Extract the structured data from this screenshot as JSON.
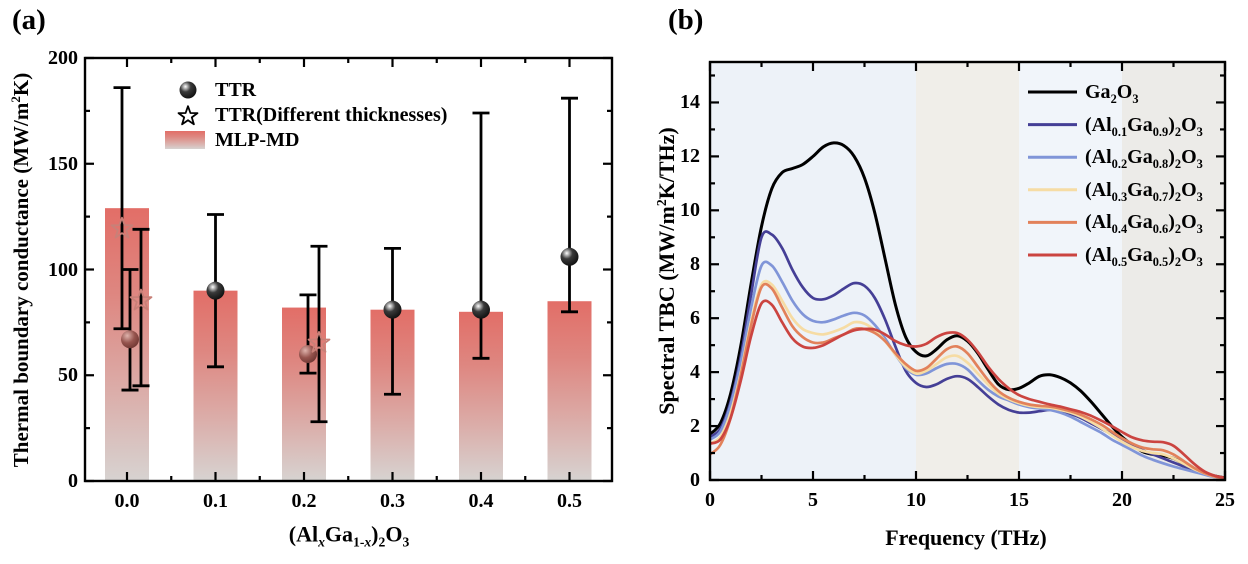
{
  "chart_data": [
    {
      "panel_label": "(a)",
      "type": "bar",
      "xlabel": "(Al_{x}Ga_{1-x})_{2}O_{3}",
      "ylabel": "Thermal boundary conductance (MW/m^{2}K)",
      "ylim": [
        0,
        200
      ],
      "yticks": [
        0,
        50,
        100,
        150,
        200
      ],
      "y_minor_step": 25,
      "categories": [
        "0.0",
        "0.1",
        "0.2",
        "0.3",
        "0.4",
        "0.5"
      ],
      "bar_series": {
        "name": "MLP-MD",
        "values": [
          129,
          90,
          82,
          81,
          80,
          85
        ],
        "color_top": "#e26e67",
        "color_mid1": "#de8781",
        "color_mid2": "#dbaeaa",
        "color_bottom": "#d7d3d1"
      },
      "scatter_series": [
        {
          "name": "TTR",
          "marker": "sphere",
          "points": [
            {
              "category": "0.0",
              "offset": 3,
              "value": 67,
              "err_low": 43,
              "err_high": 100,
              "variant": "maroon"
            },
            {
              "category": "0.1",
              "offset": 0,
              "value": 90,
              "err_low": 54,
              "err_high": 126,
              "variant": "black"
            },
            {
              "category": "0.2",
              "offset": 4,
              "value": 60,
              "err_low": 51,
              "err_high": 88,
              "variant": "maroon"
            },
            {
              "category": "0.3",
              "offset": 0,
              "value": 81,
              "err_low": 41,
              "err_high": 110,
              "variant": "black"
            },
            {
              "category": "0.4",
              "offset": 0,
              "value": 81,
              "err_low": 58,
              "err_high": 174,
              "variant": "black"
            },
            {
              "category": "0.5",
              "offset": 0,
              "value": 106,
              "err_low": 80,
              "err_high": 181,
              "variant": "black"
            }
          ]
        },
        {
          "name": "TTR(Different thicknesses)",
          "marker": "star",
          "points": [
            {
              "category": "0.0",
              "offset": -5,
              "value": 120,
              "err_low": 72,
              "err_high": 186
            },
            {
              "category": "0.0",
              "offset": 14,
              "value": 86,
              "err_low": 45,
              "err_high": 119
            },
            {
              "category": "0.2",
              "offset": 15,
              "value": 66,
              "err_low": 28,
              "err_high": 111
            }
          ]
        }
      ],
      "legend": [
        {
          "marker": "sphere",
          "label": "TTR"
        },
        {
          "marker": "star",
          "label": "TTR(Different thicknesses)"
        },
        {
          "marker": "bar",
          "label": "MLP-MD"
        }
      ],
      "colors": {
        "error_bar": "#000000",
        "sphere_black": [
          "#ffffff",
          "#3a3a3a",
          "#000000"
        ],
        "sphere_maroon": [
          "#dfb3ac",
          "#96544e",
          "#5e2a27"
        ],
        "star_outline": "#c88078",
        "legend_star_outline": "#000000"
      }
    },
    {
      "panel_label": "(b)",
      "type": "line",
      "xlabel": "Frequency (THz)",
      "ylabel": "Spectral TBC (MW/m^{2}K/THz)",
      "xlim": [
        0,
        25
      ],
      "ylim": [
        0,
        15.5
      ],
      "xticks": [
        0,
        5,
        10,
        15,
        20,
        25
      ],
      "x_minor_step": 2.5,
      "yticks": [
        0,
        2,
        4,
        6,
        8,
        10,
        12,
        14
      ],
      "y_minor_step": 1,
      "bands": [
        {
          "x_start": 0,
          "x_end": 10,
          "color": "#edf2f8"
        },
        {
          "x_start": 10,
          "x_end": 15,
          "color": "#f0eee9"
        },
        {
          "x_start": 15,
          "x_end": 20,
          "color": "#f1f5fa"
        },
        {
          "x_start": 20,
          "x_end": 25,
          "color": "#ecebe8"
        }
      ],
      "x_start": 0,
      "x_step": 0.5,
      "series": [
        {
          "name": "Ga_{2}O_{3}",
          "color": "#000000",
          "width": 3,
          "y": [
            1.7,
            2.1,
            3.2,
            5.0,
            7.3,
            9.4,
            10.8,
            11.4,
            11.55,
            11.7,
            12.0,
            12.35,
            12.5,
            12.4,
            12.0,
            11.2,
            9.9,
            8.2,
            6.5,
            5.3,
            4.75,
            4.6,
            4.85,
            5.2,
            5.35,
            5.15,
            4.7,
            4.1,
            3.55,
            3.35,
            3.4,
            3.6,
            3.85,
            3.9,
            3.8,
            3.6,
            3.3,
            2.9,
            2.45,
            2.0,
            1.6,
            1.3,
            1.05,
            0.95,
            0.9,
            0.8,
            0.6,
            0.4,
            0.25,
            0.15,
            0.08
          ]
        },
        {
          "name": "(Al_{0.1}Ga_{0.9})_{2}O_{3}",
          "color": "#453f96",
          "width": 2.7,
          "y": [
            1.6,
            1.9,
            2.9,
            4.6,
            6.9,
            9.0,
            9.1,
            8.6,
            7.8,
            7.15,
            6.75,
            6.7,
            6.85,
            7.1,
            7.3,
            7.2,
            6.75,
            5.95,
            4.95,
            4.05,
            3.6,
            3.45,
            3.55,
            3.75,
            3.85,
            3.75,
            3.45,
            3.1,
            2.8,
            2.6,
            2.5,
            2.5,
            2.55,
            2.6,
            2.55,
            2.45,
            2.3,
            2.1,
            1.9,
            1.7,
            1.5,
            1.3,
            1.1,
            0.95,
            0.8,
            0.65,
            0.5,
            0.35,
            0.22,
            0.12,
            0.06
          ]
        },
        {
          "name": "(Al_{0.2}Ga_{0.8})_{2}O_{3}",
          "color": "#8095d8",
          "width": 2.7,
          "y": [
            1.5,
            1.8,
            2.8,
            4.4,
            6.4,
            7.95,
            7.95,
            7.35,
            6.65,
            6.15,
            5.9,
            5.85,
            5.95,
            6.1,
            6.2,
            6.1,
            5.75,
            5.25,
            4.65,
            4.15,
            3.9,
            3.95,
            4.15,
            4.3,
            4.3,
            4.1,
            3.7,
            3.35,
            3.1,
            2.95,
            2.8,
            2.7,
            2.65,
            2.6,
            2.5,
            2.35,
            2.15,
            1.95,
            1.75,
            1.5,
            1.3,
            1.1,
            0.9,
            0.75,
            0.62,
            0.5,
            0.4,
            0.3,
            0.2,
            0.1,
            0.05
          ]
        },
        {
          "name": "(Al_{0.3}Ga_{0.7})_{2}O_{3}",
          "color": "#f6dca4",
          "width": 2.7,
          "y": [
            1.35,
            1.6,
            2.5,
            4.0,
            5.9,
            7.25,
            7.25,
            6.65,
            6.0,
            5.6,
            5.45,
            5.4,
            5.5,
            5.65,
            5.85,
            5.8,
            5.55,
            5.15,
            4.65,
            4.2,
            3.95,
            4.05,
            4.3,
            4.55,
            4.6,
            4.35,
            3.95,
            3.55,
            3.2,
            3.0,
            2.85,
            2.75,
            2.7,
            2.68,
            2.6,
            2.5,
            2.35,
            2.15,
            1.92,
            1.66,
            1.42,
            1.22,
            1.08,
            1.0,
            0.95,
            0.8,
            0.6,
            0.4,
            0.25,
            0.12,
            0.06
          ]
        },
        {
          "name": "(Al_{0.4}Ga_{0.6})_{2}O_{3}",
          "color": "#e2815a",
          "width": 2.7,
          "y": [
            0.95,
            1.3,
            2.3,
            3.9,
            5.75,
            7.15,
            7.1,
            6.4,
            5.7,
            5.3,
            5.1,
            5.1,
            5.25,
            5.4,
            5.6,
            5.6,
            5.45,
            5.15,
            4.7,
            4.3,
            4.05,
            4.15,
            4.5,
            4.85,
            4.95,
            4.7,
            4.2,
            3.7,
            3.3,
            3.05,
            2.9,
            2.8,
            2.75,
            2.72,
            2.65,
            2.55,
            2.42,
            2.25,
            2.05,
            1.8,
            1.55,
            1.35,
            1.2,
            1.14,
            1.1,
            0.95,
            0.7,
            0.45,
            0.26,
            0.13,
            0.06
          ]
        },
        {
          "name": "(Al_{0.5}Ga_{0.5})_{2}O_{3}",
          "color": "#cb4440",
          "width": 2.7,
          "y": [
            1.35,
            1.5,
            2.3,
            3.7,
            5.35,
            6.55,
            6.5,
            5.85,
            5.25,
            4.95,
            4.9,
            5.0,
            5.2,
            5.4,
            5.55,
            5.6,
            5.58,
            5.4,
            5.15,
            5.0,
            4.95,
            5.05,
            5.3,
            5.45,
            5.45,
            5.2,
            4.75,
            4.2,
            3.75,
            3.4,
            3.15,
            3.0,
            2.9,
            2.8,
            2.72,
            2.62,
            2.52,
            2.38,
            2.2,
            2.0,
            1.78,
            1.58,
            1.47,
            1.42,
            1.4,
            1.27,
            0.95,
            0.6,
            0.32,
            0.16,
            0.08
          ]
        }
      ]
    }
  ]
}
